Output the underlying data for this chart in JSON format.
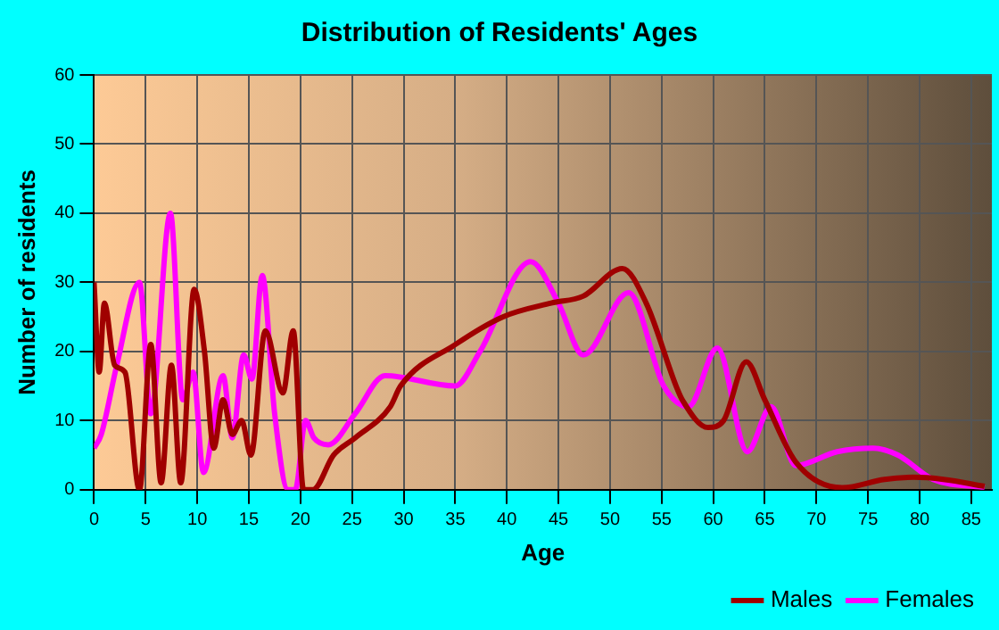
{
  "chart_data": {
    "type": "line",
    "title": "Distribution of Residents' Ages",
    "xlabel": "Age",
    "ylabel": "Number of residents",
    "xlim": [
      0,
      87
    ],
    "xticks": [
      0,
      5,
      10,
      15,
      20,
      25,
      30,
      35,
      40,
      45,
      50,
      55,
      60,
      65,
      70,
      75,
      80,
      85
    ],
    "ylim": [
      0,
      60
    ],
    "yticks": [
      0,
      10,
      20,
      30,
      40,
      50,
      60
    ],
    "grid": true,
    "legend": "bottom right",
    "marker": "none",
    "line_style": "solid",
    "series": [
      {
        "name": "Males",
        "color": "#a00000",
        "x": [
          0,
          0.5,
          1,
          2,
          3,
          4.4,
          5.5,
          6.5,
          7.5,
          8.4,
          9.7,
          10.7,
          11.6,
          12.5,
          13.4,
          14.3,
          15.2,
          16.6,
          18.3,
          19.3,
          20.3,
          21.2,
          23.2,
          25.3,
          28.7,
          29.7,
          35,
          39.6,
          44.3,
          47.4,
          51.2,
          53.5,
          56.4,
          57,
          59.5,
          61,
          63.2,
          65,
          68,
          72.5,
          76.6,
          79.4,
          82.3,
          86.3
        ],
        "values": [
          30,
          17,
          27,
          18,
          17,
          0,
          21,
          1,
          18,
          1,
          29,
          20,
          6,
          13,
          8,
          10,
          5,
          23,
          14,
          23,
          0,
          0,
          5,
          7.5,
          12,
          15,
          21,
          25,
          27,
          28,
          32,
          27,
          15,
          13,
          9,
          10,
          18.5,
          13,
          4,
          0.3,
          1.5,
          1.8,
          1.5,
          0.5
        ]
      },
      {
        "name": "Females",
        "color": "#ff00ff",
        "x": [
          0,
          0.7,
          2.2,
          4.4,
          5.5,
          7.4,
          8.6,
          9.6,
          10.6,
          12.5,
          13.4,
          14.5,
          15.3,
          16.3,
          17.5,
          18.8,
          19.5,
          20.5,
          21.3,
          22.7,
          25.3,
          28.2,
          35,
          37.4,
          42.3,
          45,
          47.4,
          51.8,
          55.2,
          57.6,
          60.4,
          63.3,
          65.6,
          68,
          72,
          75.5,
          77.9,
          81.3,
          86.3
        ],
        "values": [
          6,
          8,
          18,
          30,
          11,
          40,
          13,
          17,
          2.5,
          16.5,
          7.5,
          19.5,
          16,
          31,
          11,
          0,
          0,
          10,
          7.5,
          6.5,
          11,
          16.5,
          15,
          20,
          33,
          27,
          19.5,
          28.5,
          15,
          12,
          20.5,
          5.5,
          12,
          3.5,
          5.5,
          6,
          5,
          1.5,
          0.3
        ]
      }
    ]
  }
}
